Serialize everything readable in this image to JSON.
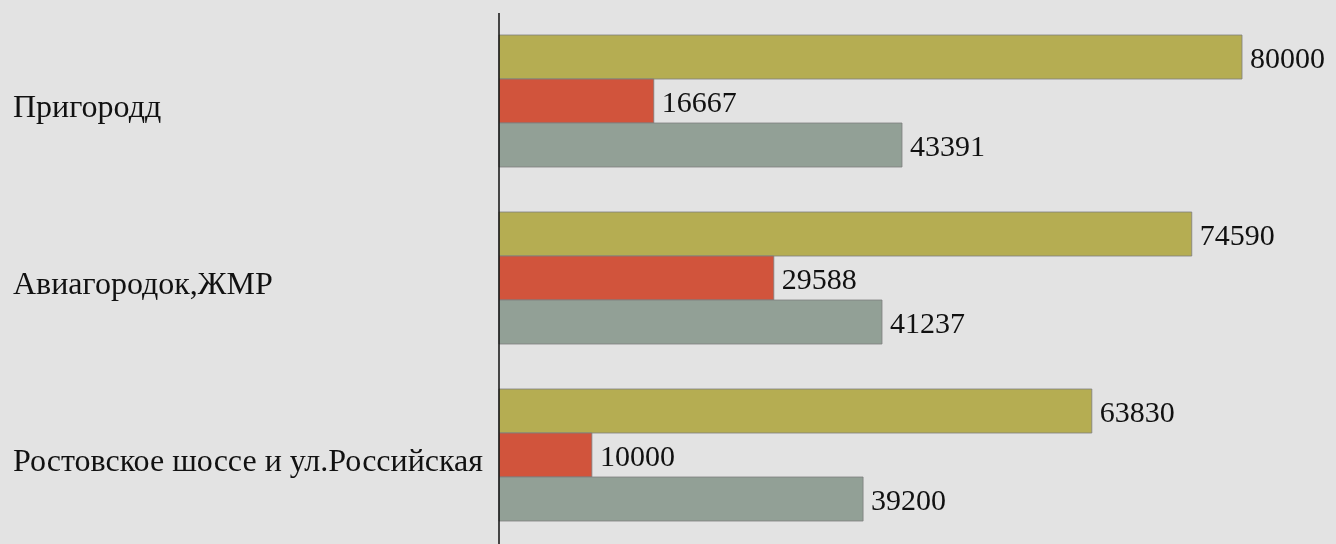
{
  "chart_data": {
    "type": "bar",
    "orientation": "horizontal",
    "categories": [
      "Пригородд",
      "Авиагородок,ЖМР",
      "Ростовское шоссе и ул.Российская"
    ],
    "series": [
      {
        "color": "#b5ad52",
        "values": [
          80000,
          74590,
          63830
        ]
      },
      {
        "color": "#d1543c",
        "values": [
          16667,
          29588,
          10000
        ]
      },
      {
        "color": "#92a096",
        "values": [
          43391,
          41237,
          39200
        ]
      }
    ],
    "data_labels": true
  }
}
